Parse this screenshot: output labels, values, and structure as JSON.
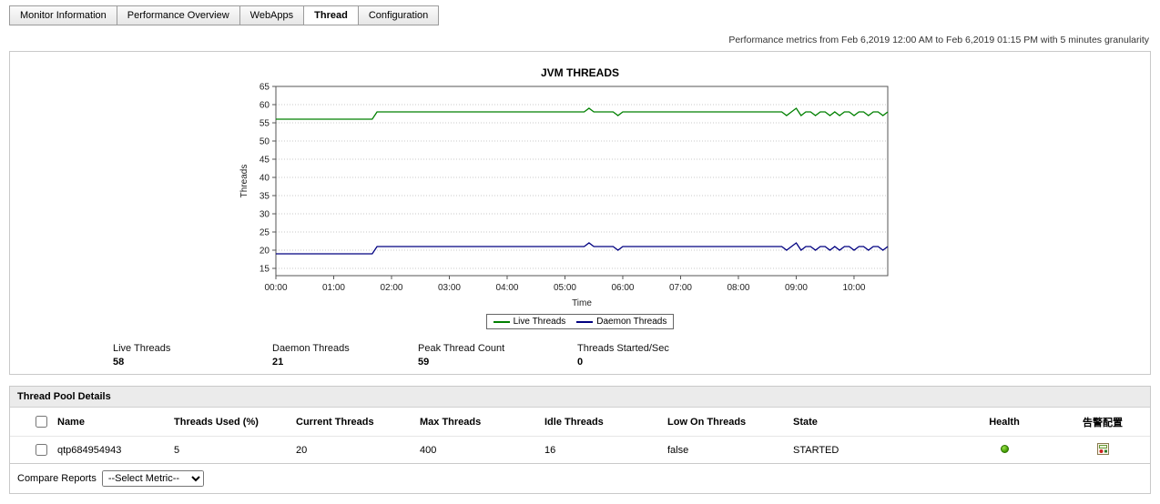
{
  "tabs": [
    {
      "label": "Monitor Information",
      "active": false
    },
    {
      "label": "Performance Overview",
      "active": false
    },
    {
      "label": "WebApps",
      "active": false
    },
    {
      "label": "Thread",
      "active": true
    },
    {
      "label": "Configuration",
      "active": false
    }
  ],
  "metrics_note": "Performance metrics from Feb 6,2019 12:00 AM to Feb 6,2019 01:15 PM with 5 minutes granularity",
  "chart_data": {
    "type": "line",
    "title": "JVM THREADS",
    "xlabel": "Time",
    "ylabel": "Threads",
    "ylim": [
      13,
      65
    ],
    "yticks": [
      15,
      20,
      25,
      30,
      35,
      40,
      45,
      50,
      55,
      60,
      65
    ],
    "x_tick_labels": [
      "00:00",
      "01:00",
      "02:00",
      "03:00",
      "04:00",
      "05:00",
      "06:00",
      "07:00",
      "08:00",
      "09:00",
      "10:00"
    ],
    "x_tick_every": 12,
    "interval_minutes": 5,
    "grid": true,
    "legend_position": "bottom",
    "series": [
      {
        "name": "Live Threads",
        "color": "#008000",
        "values": [
          56,
          56,
          56,
          56,
          56,
          56,
          56,
          56,
          56,
          56,
          56,
          56,
          56,
          56,
          56,
          56,
          56,
          56,
          56,
          56,
          56,
          58,
          58,
          58,
          58,
          58,
          58,
          58,
          58,
          58,
          58,
          58,
          58,
          58,
          58,
          58,
          58,
          58,
          58,
          58,
          58,
          58,
          58,
          58,
          58,
          58,
          58,
          58,
          58,
          58,
          58,
          58,
          58,
          58,
          58,
          58,
          58,
          58,
          58,
          58,
          58,
          58,
          58,
          58,
          58,
          59,
          58,
          58,
          58,
          58,
          58,
          57,
          58,
          58,
          58,
          58,
          58,
          58,
          58,
          58,
          58,
          58,
          58,
          58,
          58,
          58,
          58,
          58,
          58,
          58,
          58,
          58,
          58,
          58,
          58,
          58,
          58,
          58,
          58,
          58,
          58,
          58,
          58,
          58,
          58,
          58,
          57,
          58,
          59,
          57,
          58,
          58,
          57,
          58,
          58,
          57,
          58,
          57,
          58,
          58,
          57,
          58,
          58,
          57,
          58,
          58,
          57,
          58
        ]
      },
      {
        "name": "Daemon Threads",
        "color": "#000080",
        "values": [
          19,
          19,
          19,
          19,
          19,
          19,
          19,
          19,
          19,
          19,
          19,
          19,
          19,
          19,
          19,
          19,
          19,
          19,
          19,
          19,
          19,
          21,
          21,
          21,
          21,
          21,
          21,
          21,
          21,
          21,
          21,
          21,
          21,
          21,
          21,
          21,
          21,
          21,
          21,
          21,
          21,
          21,
          21,
          21,
          21,
          21,
          21,
          21,
          21,
          21,
          21,
          21,
          21,
          21,
          21,
          21,
          21,
          21,
          21,
          21,
          21,
          21,
          21,
          21,
          21,
          22,
          21,
          21,
          21,
          21,
          21,
          20,
          21,
          21,
          21,
          21,
          21,
          21,
          21,
          21,
          21,
          21,
          21,
          21,
          21,
          21,
          21,
          21,
          21,
          21,
          21,
          21,
          21,
          21,
          21,
          21,
          21,
          21,
          21,
          21,
          21,
          21,
          21,
          21,
          21,
          21,
          20,
          21,
          22,
          20,
          21,
          21,
          20,
          21,
          21,
          20,
          21,
          20,
          21,
          21,
          20,
          21,
          21,
          20,
          21,
          21,
          20,
          21
        ]
      }
    ]
  },
  "stats": [
    {
      "label": "Live Threads",
      "value": "58"
    },
    {
      "label": "Daemon Threads",
      "value": "21"
    },
    {
      "label": "Peak Thread Count",
      "value": "59"
    },
    {
      "label": "Threads Started/Sec",
      "value": "0"
    }
  ],
  "pool": {
    "title": "Thread Pool Details",
    "columns": {
      "name": "Name",
      "threads_used": "Threads Used  (%)",
      "current": "Current Threads",
      "max": "Max Threads",
      "idle": "Idle Threads",
      "low_on": "Low On Threads",
      "state": "State",
      "health": "Health",
      "alarm_config": "告警配置"
    },
    "rows": [
      {
        "name": "qtp684954943",
        "threads_used": "5",
        "current": "20",
        "max": "400",
        "idle": "16",
        "low_on": "false",
        "state": "STARTED",
        "health": "green"
      }
    ]
  },
  "compare": {
    "label": "Compare Reports",
    "selected": "--Select Metric--"
  }
}
